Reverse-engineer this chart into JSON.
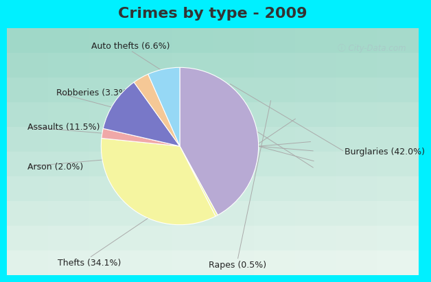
{
  "title": "Crimes by type - 2009",
  "labels": [
    "Burglaries (42.0%)",
    "Rapes (0.5%)",
    "Thefts (34.1%)",
    "Arson (2.0%)",
    "Assaults (11.5%)",
    "Robberies (3.3%)",
    "Auto thefts (6.6%)"
  ],
  "values": [
    42.0,
    0.5,
    34.1,
    2.0,
    11.5,
    3.3,
    6.6
  ],
  "colors": [
    "#b8aad4",
    "#f2f5a5",
    "#f5f5a0",
    "#f0a8a8",
    "#7878c8",
    "#f5c896",
    "#96d8f5"
  ],
  "title_bg": "#00f0ff",
  "chart_bg_top_left": "#a8e8d8",
  "chart_bg_bottom_right": "#e8f5f0",
  "title_fontsize": 16,
  "label_fontsize": 9,
  "startangle": 90,
  "title_color": "#333333"
}
